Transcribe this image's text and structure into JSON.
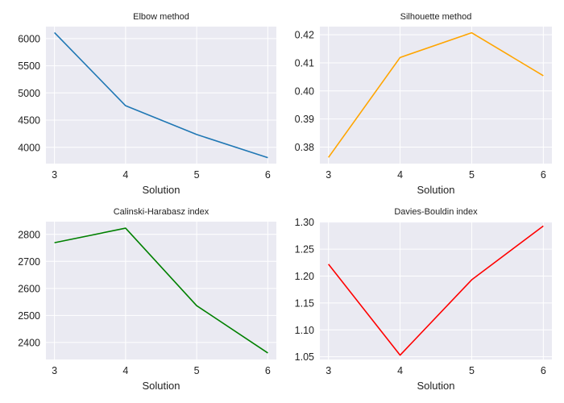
{
  "chart_data": [
    {
      "type": "line",
      "title": "Elbow method",
      "xlabel": "Solution",
      "ylabel": "",
      "x": [
        3,
        4,
        5,
        6
      ],
      "series": [
        {
          "values": [
            6110,
            4765,
            4235,
            3810
          ]
        }
      ],
      "color": "#1f77b4",
      "xlim": [
        2.88,
        6.12
      ],
      "ylim": [
        3700,
        6220
      ],
      "xticks": [
        3,
        4,
        5,
        6
      ],
      "yticks": [
        4000,
        4500,
        5000,
        5500,
        6000
      ],
      "grid": true
    },
    {
      "type": "line",
      "title": "Silhouette method",
      "xlabel": "Solution",
      "ylabel": "",
      "x": [
        3,
        4,
        5,
        6
      ],
      "series": [
        {
          "values": [
            0.3763,
            0.4119,
            0.4207,
            0.4054
          ]
        }
      ],
      "color": "#ffa500",
      "xlim": [
        2.88,
        6.12
      ],
      "ylim": [
        0.3741,
        0.4229
      ],
      "xticks": [
        3,
        4,
        5,
        6
      ],
      "yticks": [
        0.38,
        0.39,
        0.4,
        0.41,
        0.42
      ],
      "ytick_labels": [
        "0.38",
        "0.39",
        "0.40",
        "0.41",
        "0.42"
      ],
      "grid": true
    },
    {
      "type": "line",
      "title": "Calinski-Harabasz index",
      "xlabel": "Solution",
      "ylabel": "",
      "x": [
        3,
        4,
        5,
        6
      ],
      "series": [
        {
          "values": [
            2769,
            2823,
            2536,
            2361
          ]
        }
      ],
      "color": "#008000",
      "xlim": [
        2.88,
        6.12
      ],
      "ylim": [
        2337,
        2847
      ],
      "xticks": [
        3,
        4,
        5,
        6
      ],
      "yticks": [
        2400,
        2500,
        2600,
        2700,
        2800
      ],
      "grid": true
    },
    {
      "type": "line",
      "title": "Davies-Bouldin index",
      "xlabel": "Solution",
      "ylabel": "",
      "x": [
        3,
        4,
        5,
        6
      ],
      "series": [
        {
          "values": [
            1.222,
            1.053,
            1.193,
            1.293
          ]
        }
      ],
      "color": "#ff0000",
      "xlim": [
        2.88,
        6.12
      ],
      "ylim": [
        1.045,
        1.301
      ],
      "xticks": [
        3,
        4,
        5,
        6
      ],
      "yticks": [
        1.05,
        1.1,
        1.15,
        1.2,
        1.25,
        1.3
      ],
      "ytick_labels": [
        "1.05",
        "1.10",
        "1.15",
        "1.20",
        "1.25",
        "1.30"
      ],
      "grid": true
    }
  ]
}
